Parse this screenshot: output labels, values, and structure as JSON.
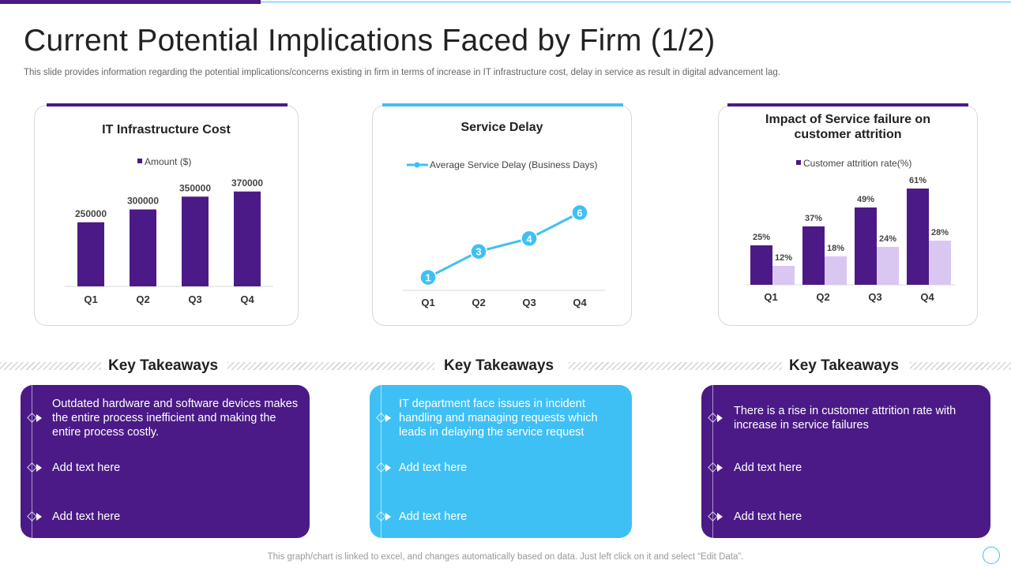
{
  "slide": {
    "title": "Current Potential Implications Faced by Firm (1/2)",
    "subtitle": "This slide provides information regarding the potential implications/concerns existing in firm in terms of increase in IT infrastructure cost, delay in service as result in digital advancement lag.",
    "footer": "This graph/chart is linked to excel,  and changes automatically based on data. Just left click on it and select “Edit Data”."
  },
  "colors": {
    "purple": "#4b1a86",
    "light_purple": "#d9c7f1",
    "blue": "#3fc0f5"
  },
  "chart_data": [
    {
      "type": "bar",
      "title": "IT Infrastructure Cost",
      "categories": [
        "Q1",
        "Q2",
        "Q3",
        "Q4"
      ],
      "series": [
        {
          "name": "Amount ($)",
          "values": [
            250000,
            300000,
            350000,
            370000
          ]
        }
      ],
      "data_labels": [
        "250000",
        "300000",
        "350000",
        "370000"
      ],
      "ylim": [
        0,
        400000
      ],
      "legend": "top"
    },
    {
      "type": "line",
      "title": "Service Delay",
      "categories": [
        "Q1",
        "Q2",
        "Q3",
        "Q4"
      ],
      "series": [
        {
          "name": "Average Service Delay (Business Days)",
          "values": [
            1,
            3,
            4,
            6
          ]
        }
      ],
      "data_labels": [
        "1",
        "3",
        "4",
        "6"
      ],
      "ylim": [
        0,
        6.7
      ],
      "legend": "top"
    },
    {
      "type": "bar",
      "title": "Impact of Service failure on customer attrition",
      "categories": [
        "Q1",
        "Q2",
        "Q3",
        "Q4"
      ],
      "series": [
        {
          "name": "Customer attrition rate(%)",
          "values": [
            25,
            37,
            49,
            61
          ],
          "labels": [
            "25%",
            "37%",
            "49%",
            "61%"
          ]
        },
        {
          "name": "",
          "values": [
            12,
            18,
            24,
            28
          ],
          "labels": [
            "12%",
            "18%",
            "24%",
            "28%"
          ]
        }
      ],
      "ylim": [
        0,
        65
      ],
      "legend": "top"
    }
  ],
  "takeaways": [
    {
      "heading": "Key Takeaways",
      "items": [
        "Outdated hardware and software devices makes the entire process inefficient and making the entire process costly.",
        "Add text here",
        "Add text here"
      ]
    },
    {
      "heading": "Key Takeaways",
      "items": [
        "IT department face issues in incident handling and managing requests which leads in delaying the service request",
        "Add text here",
        "Add text here"
      ]
    },
    {
      "heading": "Key Takeaways",
      "items": [
        "There is a rise in customer attrition rate with increase in service failures",
        "Add text here",
        "Add text here"
      ]
    }
  ]
}
